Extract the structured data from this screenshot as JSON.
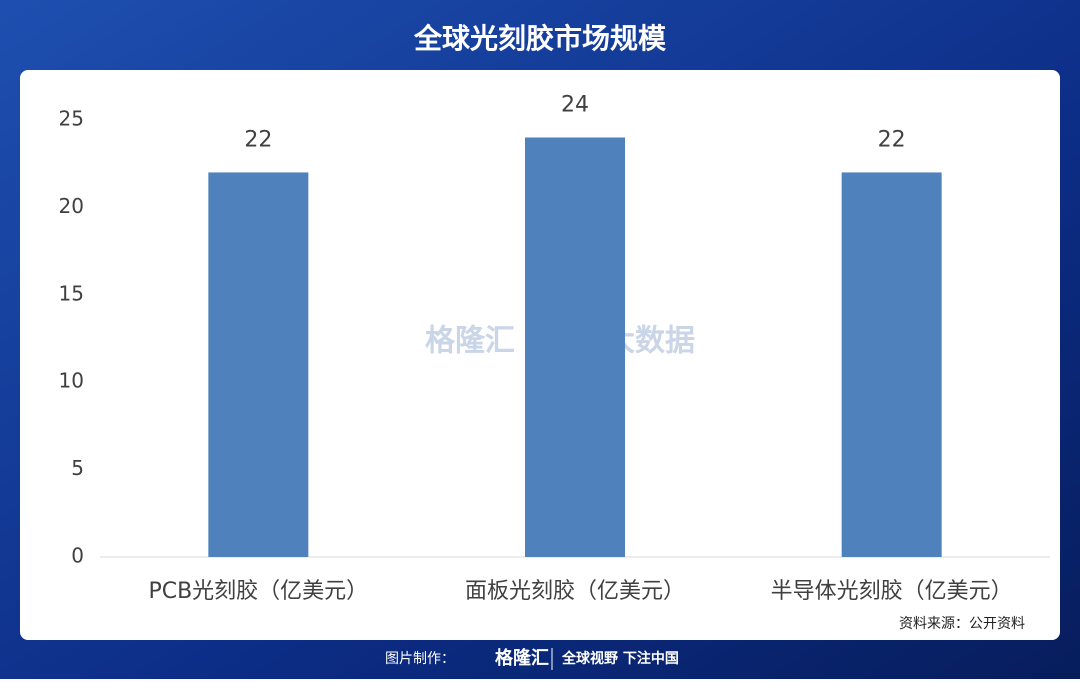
{
  "chart_data": {
    "type": "bar",
    "title": "全球光刻胶市场规模",
    "categories": [
      "PCB光刻胶（亿美元）",
      "面板光刻胶（亿美元）",
      "半导体光刻胶（亿美元）"
    ],
    "values": [
      22,
      24,
      22
    ],
    "color": "#4f81bd",
    "ylim": [
      0,
      25
    ],
    "yticks": [
      0,
      5,
      10,
      15,
      20,
      25
    ],
    "grid": false,
    "source": "资料来源：公开资料"
  },
  "watermarks": [
    "格隆汇",
    "勾股大数据"
  ],
  "footer": {
    "label": "图片制作：",
    "brand": "格隆汇",
    "slogan": "全球视野 下注中国"
  }
}
